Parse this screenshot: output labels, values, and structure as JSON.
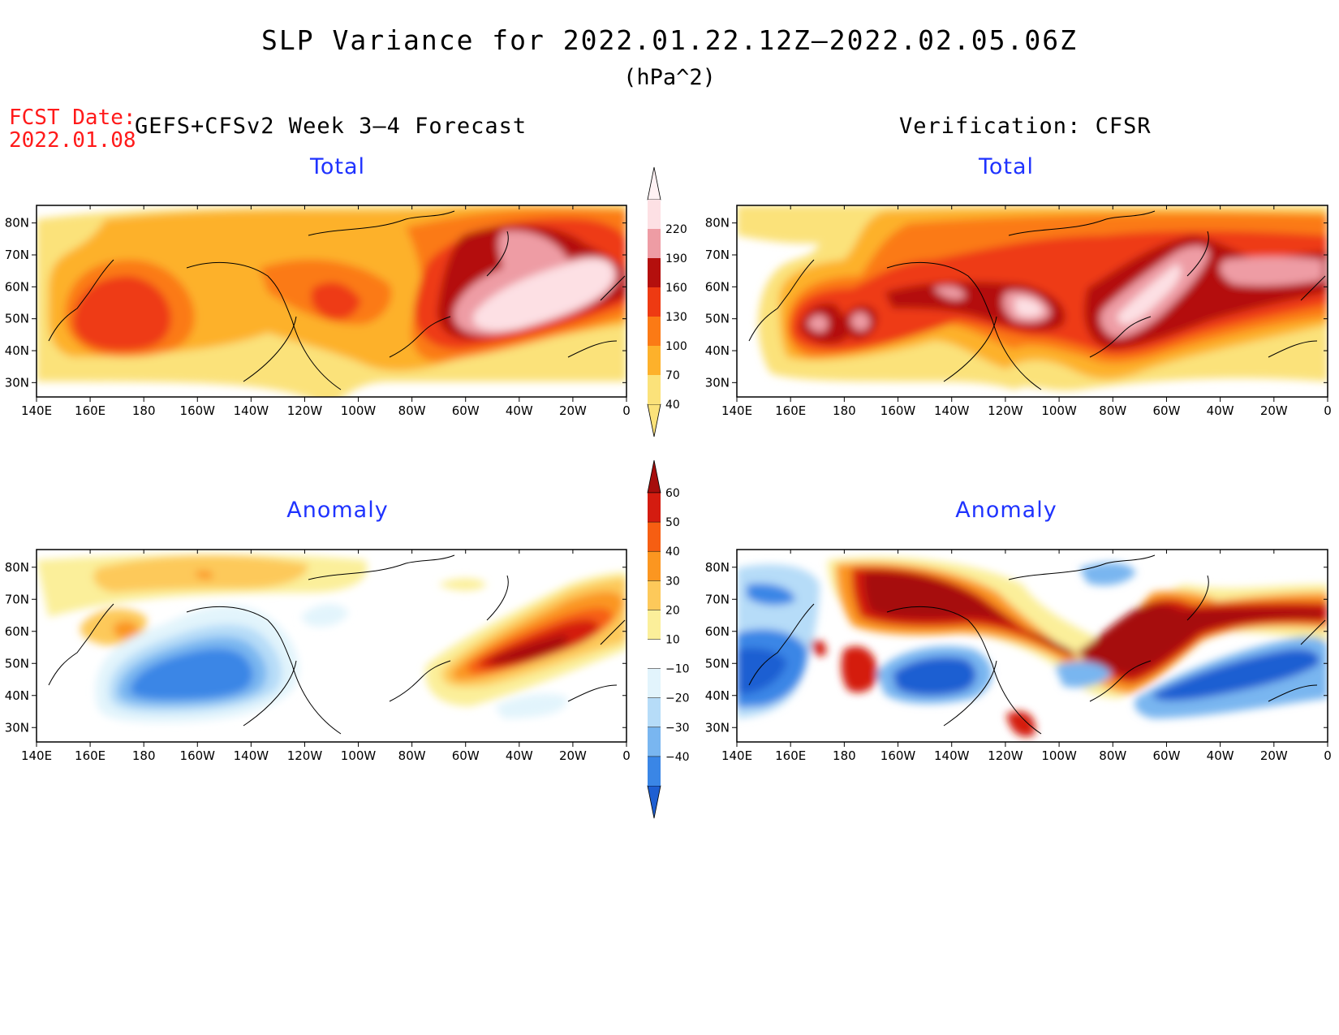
{
  "figure": {
    "title": "SLP Variance for 2022.01.22.12Z–2022.02.05.06Z",
    "units": "(hPa^2)",
    "fcst_label": "FCST Date:",
    "fcst_date": "2022.01.08",
    "left_header": "GEFS+CFSv2 Week 3–4 Forecast",
    "right_header": "Verification: CFSR"
  },
  "panels": [
    {
      "id": "forecast-total",
      "title": "Total"
    },
    {
      "id": "verification-total",
      "title": "Total"
    },
    {
      "id": "forecast-anomaly",
      "title": "Anomaly"
    },
    {
      "id": "verification-anomaly",
      "title": "Anomaly"
    }
  ],
  "axes": {
    "lon_labels": [
      "140E",
      "160E",
      "180",
      "160W",
      "140W",
      "120W",
      "100W",
      "80W",
      "60W",
      "40W",
      "20W",
      "0"
    ],
    "lat_labels": [
      "80N",
      "70N",
      "60N",
      "50N",
      "40N",
      "30N"
    ]
  },
  "colorbars": {
    "total": {
      "levels": [
        "40",
        "70",
        "100",
        "130",
        "160",
        "190",
        "220"
      ],
      "colors": [
        "#fbe27a",
        "#fdb12b",
        "#fb7a15",
        "#ee3a12",
        "#b40f0d",
        "#ee9ca4",
        "#fde0e4",
        "#fff2f4"
      ]
    },
    "anomaly": {
      "levels": [
        "−40",
        "−30",
        "−20",
        "−10",
        "10",
        "20",
        "30",
        "40",
        "50",
        "60"
      ],
      "colors": [
        "#1e5fd2",
        "#3a86e6",
        "#79b6f0",
        "#b6dcf8",
        "#e2f4fc",
        "#ffffff",
        "#fbef9a",
        "#fdc95a",
        "#fb9620",
        "#f65e12",
        "#d41c10",
        "#a60d0c"
      ]
    }
  },
  "chart_data": {
    "type": "heatmap",
    "title": "SLP Variance for 2022.01.22.12Z–2022.02.05.06Z",
    "units": "hPa^2",
    "x_range": [
      "140E",
      "0"
    ],
    "y_range": [
      "25N",
      "85N"
    ],
    "total_levels": [
      40,
      70,
      100,
      130,
      160,
      190,
      220
    ],
    "anomaly_levels": [
      -40,
      -30,
      -20,
      -10,
      10,
      20,
      30,
      40,
      50,
      60
    ]
  }
}
